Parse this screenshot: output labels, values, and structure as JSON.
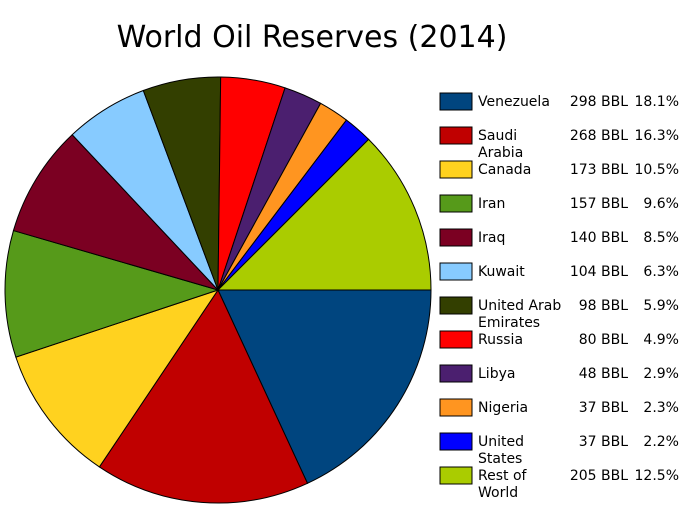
{
  "chart_data": {
    "type": "pie",
    "title": "World Oil Reserves (2014)",
    "categories": [
      "Venezuela",
      "Saudi Arabia",
      "Canada",
      "Iran",
      "Iraq",
      "Kuwait",
      "United Arab Emirates",
      "Russia",
      "Libya",
      "Nigeria",
      "United States",
      "Rest of World"
    ],
    "values": [
      18.1,
      16.3,
      10.5,
      9.6,
      8.5,
      6.3,
      5.9,
      4.9,
      2.9,
      2.3,
      2.2,
      12.5
    ],
    "value_labels": [
      "18.1%",
      "16.3%",
      "10.5%",
      "9.6%",
      "8.5%",
      "6.3%",
      "5.9%",
      "4.9%",
      "2.9%",
      "2.3%",
      "2.2%",
      "12.5%"
    ],
    "reserves": [
      298,
      268,
      173,
      157,
      140,
      104,
      98,
      80,
      48,
      37,
      37,
      205
    ],
    "reserve_labels": [
      "298 BBL",
      "268 BBL",
      "173 BBL",
      "157 BBL",
      "140 BBL",
      "104 BBL",
      "98 BBL",
      "80 BBL",
      "48 BBL",
      "37 BBL",
      "37 BBL",
      "205 BBL"
    ],
    "colors": [
      "#00457f",
      "#c00000",
      "#ffd21f",
      "#569a1a",
      "#7b0022",
      "#87cbff",
      "#333f00",
      "#ff0000",
      "#4b1f6f",
      "#ff9520",
      "#0000ff",
      "#aacc00"
    ]
  }
}
